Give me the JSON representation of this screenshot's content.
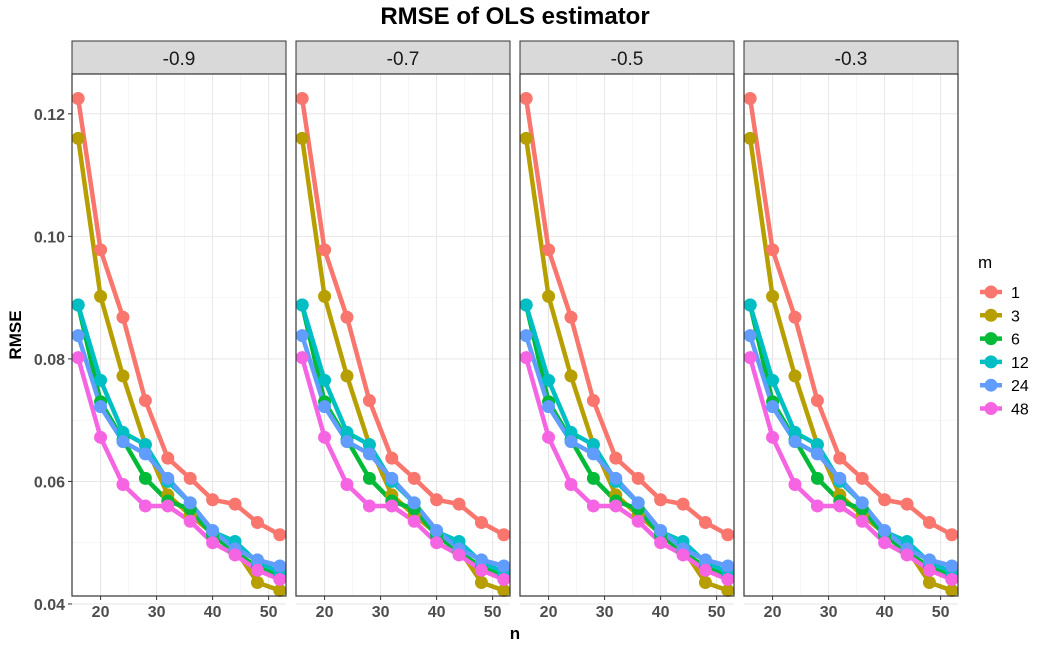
{
  "chart_data": {
    "type": "line",
    "title": "RMSE of OLS estimator",
    "xlabel": "n",
    "ylabel": "RMSE",
    "xlim": [
      14.9,
      53.1
    ],
    "ylim": [
      0.0413,
      0.1265
    ],
    "x_ticks": [
      20,
      30,
      40,
      50
    ],
    "y_ticks": [
      0.04,
      0.06,
      0.08,
      0.1,
      0.12
    ],
    "y_tick_labels": [
      "0.04",
      "0.06",
      "0.08",
      "0.10",
      "0.12"
    ],
    "x_tick_labels": [
      "20",
      "30",
      "40",
      "50"
    ],
    "facets": [
      "-0.9",
      "-0.7",
      "-0.5",
      "-0.3"
    ],
    "legend": {
      "title": "m",
      "position": "right"
    },
    "x": [
      16,
      20,
      24,
      28,
      32,
      36,
      40,
      44,
      48,
      52
    ],
    "series": [
      {
        "name": "1",
        "color": "#F8766D",
        "values": [
          0.1225,
          0.0978,
          0.0868,
          0.0732,
          0.0638,
          0.0605,
          0.057,
          0.0563,
          0.0533,
          0.0513
        ]
      },
      {
        "name": "3",
        "color": "#B79F00",
        "values": [
          0.116,
          0.0902,
          0.0772,
          0.066,
          0.0578,
          0.0545,
          0.0515,
          0.049,
          0.0435,
          0.0422
        ]
      },
      {
        "name": "6",
        "color": "#00BA38",
        "values": [
          0.0888,
          0.073,
          0.0668,
          0.0605,
          0.0568,
          0.0555,
          0.0512,
          0.0485,
          0.046,
          0.0448
        ]
      },
      {
        "name": "12",
        "color": "#00BFC4",
        "values": [
          0.0888,
          0.0765,
          0.068,
          0.066,
          0.06,
          0.0565,
          0.0518,
          0.0502,
          0.0468,
          0.0452
        ]
      },
      {
        "name": "24",
        "color": "#619CFF",
        "values": [
          0.0838,
          0.0722,
          0.0665,
          0.0645,
          0.0605,
          0.0565,
          0.052,
          0.049,
          0.0472,
          0.0462
        ]
      },
      {
        "name": "48",
        "color": "#F564E3",
        "values": [
          0.0802,
          0.0672,
          0.0595,
          0.056,
          0.056,
          0.0535,
          0.05,
          0.048,
          0.0455,
          0.044
        ]
      }
    ]
  }
}
